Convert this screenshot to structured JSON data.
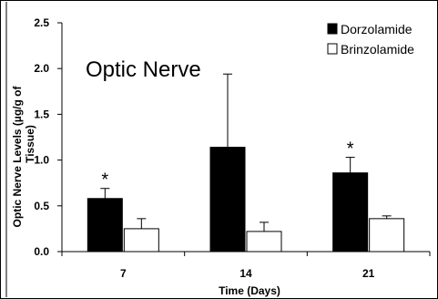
{
  "chart_data": {
    "type": "bar",
    "title": "Optic Nerve",
    "xlabel": "Time (Days)",
    "ylabel_line1": "Optic Nerve Levels (µg/g of",
    "ylabel_line2": "Tissue)",
    "categories": [
      "7",
      "14",
      "21"
    ],
    "series": [
      {
        "name": "Dorzolamide",
        "color": "#000000",
        "values": [
          0.58,
          1.14,
          0.86
        ],
        "errors": [
          0.11,
          0.8,
          0.17
        ],
        "significant": [
          true,
          false,
          true
        ]
      },
      {
        "name": "Brinzolamide",
        "color": "#ffffff",
        "values": [
          0.25,
          0.22,
          0.36
        ],
        "errors": [
          0.11,
          0.1,
          0.03
        ],
        "significant": [
          false,
          false,
          false
        ]
      }
    ],
    "significance_marker": "*",
    "ylim": [
      0,
      2.5
    ],
    "yticks": [
      "0.0",
      "0.5",
      "1.0",
      "1.5",
      "2.0",
      "2.5"
    ],
    "legend_position": "top-right",
    "grid": false
  }
}
